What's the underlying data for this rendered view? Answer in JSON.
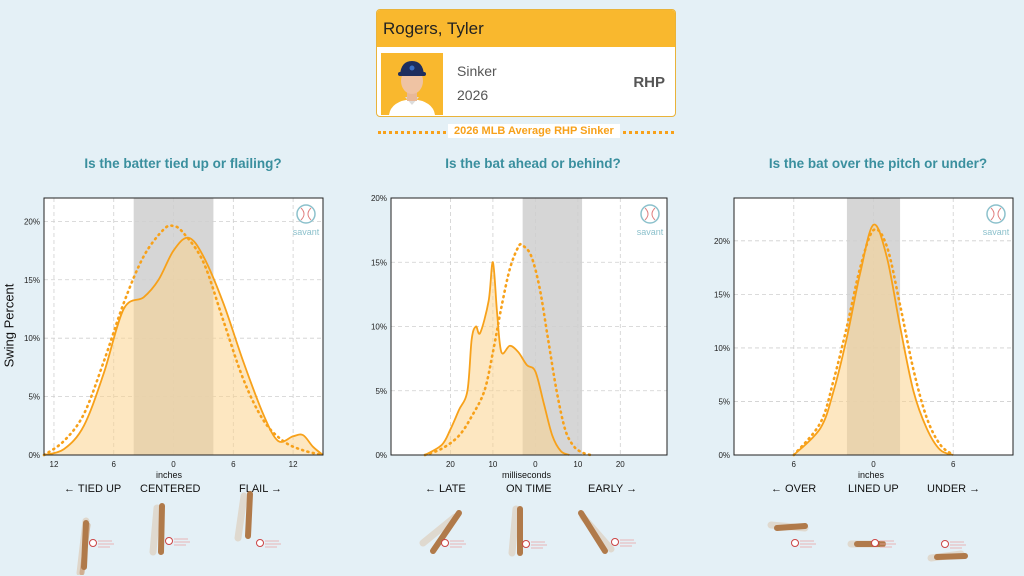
{
  "player": {
    "name": "Rogers, Tyler",
    "pitch": "Sinker",
    "year": "2026",
    "handedness": "RHP"
  },
  "legend": {
    "label": "2026 MLB Average RHP Sinker"
  },
  "colors": {
    "accent": "#f7a11a",
    "header": "#f9b82e",
    "question": "#3a8f9e",
    "band": "#d6d6d6"
  },
  "shared_ylabel": "Swing Percent",
  "panels": [
    {
      "question": "Is the batter tied up or flailing?",
      "xlabel": "inches",
      "left": "← TIED UP",
      "center": "CENTERED",
      "right": "FLAIL →",
      "icon": "savant-logo",
      "logo_text": "savant"
    },
    {
      "question": "Is the bat ahead or behind?",
      "xlabel": "milliseconds",
      "left": "← LATE",
      "center": "ON TIME",
      "right": "EARLY →",
      "icon": "savant-logo",
      "logo_text": "savant"
    },
    {
      "question": "Is the bat over the pitch or under?",
      "xlabel": "inches",
      "left": "← OVER",
      "center": "LINED UP",
      "right": "UNDER →",
      "icon": "savant-logo",
      "logo_text": "savant"
    }
  ],
  "chart_data": [
    {
      "type": "area",
      "xlim": [
        13,
        -15
      ],
      "ylim": [
        0,
        22
      ],
      "xticks": [
        12,
        6,
        0,
        -6,
        -12
      ],
      "xticklabels": [
        "12",
        "6",
        "0",
        "6",
        "12"
      ],
      "yticks": [
        0,
        5,
        10,
        15,
        20
      ],
      "yticklabels": [
        "0%",
        "5%",
        "10%",
        "15%",
        "20%"
      ],
      "band": [
        4,
        -4
      ],
      "grid": true,
      "series": [
        {
          "values": [
            [
              13,
              0
            ],
            [
              11,
              0.5
            ],
            [
              9,
              2.5
            ],
            [
              7,
              7
            ],
            [
              5,
              12.5
            ],
            [
              3,
              13.5
            ],
            [
              1.5,
              15
            ],
            [
              0,
              17.5
            ],
            [
              -1.5,
              18.6
            ],
            [
              -3,
              17
            ],
            [
              -5,
              13
            ],
            [
              -7,
              8
            ],
            [
              -9,
              3.5
            ],
            [
              -10.5,
              1.2
            ],
            [
              -12,
              1.6
            ],
            [
              -13,
              1.7
            ],
            [
              -14,
              0.7
            ],
            [
              -15,
              0
            ]
          ]
        },
        {
          "values": [
            [
              13,
              0
            ],
            [
              11,
              1.2
            ],
            [
              9,
              3.5
            ],
            [
              7,
              8
            ],
            [
              5,
              13
            ],
            [
              3,
              17
            ],
            [
              1,
              19.3
            ],
            [
              0,
              19.6
            ],
            [
              -1,
              19
            ],
            [
              -3,
              16.5
            ],
            [
              -5,
              11.5
            ],
            [
              -7,
              6.5
            ],
            [
              -9,
              3
            ],
            [
              -11,
              1.2
            ],
            [
              -13,
              0.4
            ],
            [
              -15,
              0
            ]
          ]
        }
      ]
    },
    {
      "type": "area",
      "xlim": [
        34,
        -31
      ],
      "ylim": [
        0,
        20
      ],
      "xticks": [
        20,
        10,
        0,
        -10,
        -20
      ],
      "xticklabels": [
        "20",
        "10",
        "0",
        "10",
        "20"
      ],
      "yticks": [
        0,
        5,
        10,
        15,
        20
      ],
      "yticklabels": [
        "0%",
        "5%",
        "10%",
        "15%",
        "20%"
      ],
      "band": [
        3,
        -11
      ],
      "grid": true,
      "series": [
        {
          "values": [
            [
              26,
              0
            ],
            [
              22,
              0.8
            ],
            [
              20,
              2
            ],
            [
              18,
              3.5
            ],
            [
              16,
              5
            ],
            [
              15,
              9
            ],
            [
              14,
              10
            ],
            [
              13,
              9.5
            ],
            [
              11,
              12
            ],
            [
              10,
              15
            ],
            [
              9,
              11
            ],
            [
              8,
              8
            ],
            [
              6,
              8.5
            ],
            [
              4,
              8
            ],
            [
              2,
              7
            ],
            [
              0,
              6.5
            ],
            [
              -2,
              4
            ],
            [
              -4,
              1.5
            ],
            [
              -6,
              0.3
            ],
            [
              -8,
              0
            ]
          ]
        },
        {
          "values": [
            [
              26,
              0
            ],
            [
              22,
              0.5
            ],
            [
              18,
              1.5
            ],
            [
              15,
              3
            ],
            [
              12,
              5
            ],
            [
              10,
              8
            ],
            [
              8,
              11.5
            ],
            [
              6,
              14.5
            ],
            [
              4,
              16.2
            ],
            [
              3,
              16.3
            ],
            [
              1,
              15.5
            ],
            [
              -1,
              13
            ],
            [
              -3,
              9
            ],
            [
              -5,
              5
            ],
            [
              -7,
              2
            ],
            [
              -9,
              0.7
            ],
            [
              -11,
              0.2
            ],
            [
              -13,
              0
            ]
          ]
        }
      ]
    },
    {
      "type": "area",
      "xlim": [
        10.5,
        -10.5
      ],
      "ylim": [
        0,
        24
      ],
      "xticks": [
        6,
        0,
        -6
      ],
      "xticklabels": [
        "6",
        "0",
        "6"
      ],
      "yticks": [
        0,
        5,
        10,
        15,
        20
      ],
      "yticklabels": [
        "0%",
        "5%",
        "10%",
        "15%",
        "20%"
      ],
      "band": [
        2,
        -2
      ],
      "grid": true,
      "series": [
        {
          "values": [
            [
              6,
              0
            ],
            [
              4,
              2.5
            ],
            [
              3,
              6
            ],
            [
              2,
              11
            ],
            [
              1,
              17
            ],
            [
              0,
              21.5
            ],
            [
              -1,
              18.5
            ],
            [
              -2,
              12
            ],
            [
              -3,
              6
            ],
            [
              -4,
              2.5
            ],
            [
              -5,
              0.5
            ],
            [
              -6,
              0
            ]
          ]
        },
        {
          "values": [
            [
              6,
              0
            ],
            [
              4,
              3
            ],
            [
              3,
              7
            ],
            [
              2,
              12
            ],
            [
              1,
              17.5
            ],
            [
              0,
              21
            ],
            [
              -1,
              19.5
            ],
            [
              -2,
              14
            ],
            [
              -3,
              8
            ],
            [
              -4,
              3.5
            ],
            [
              -5,
              1
            ],
            [
              -6,
              0
            ]
          ]
        }
      ]
    }
  ]
}
